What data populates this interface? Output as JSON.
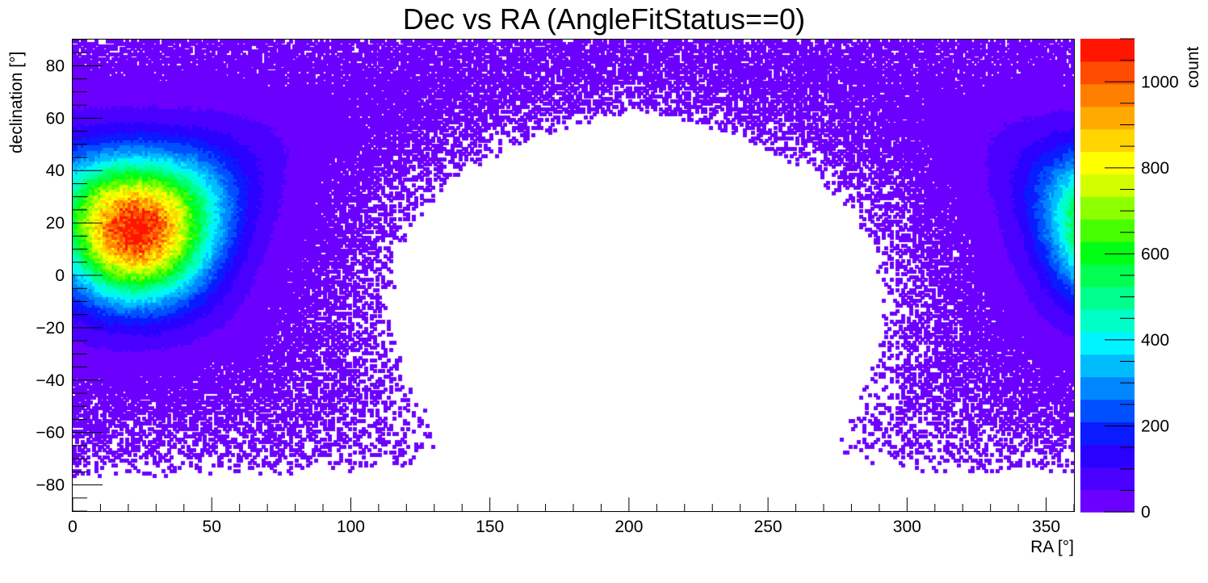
{
  "chart_data": {
    "type": "heatmap",
    "title": "Dec vs RA (AngleFitStatus==0)",
    "xlabel": "RA [°]",
    "ylabel": "declination [°]",
    "zlabel": "count",
    "xlim": [
      0,
      360
    ],
    "ylim": [
      -90,
      90
    ],
    "zlim": [
      0,
      1100
    ],
    "x_ticks": [
      "0",
      "50",
      "100",
      "150",
      "200",
      "250",
      "300",
      "350"
    ],
    "y_ticks": [
      "−80",
      "−60",
      "−40",
      "−20",
      "0",
      "20",
      "40",
      "60",
      "80"
    ],
    "z_ticks": [
      "0",
      "200",
      "400",
      "600",
      "800",
      "1000"
    ],
    "bins": {
      "nx": 360,
      "ny": 180
    },
    "grid": false,
    "hotspot": {
      "ra": 23,
      "dec": 18,
      "peak_count": 1090
    },
    "palette": [
      "#6c00ff",
      "#4a00ff",
      "#2a00ff",
      "#0a1cff",
      "#0050ff",
      "#0086ff",
      "#00bcff",
      "#00f4ff",
      "#00ffc8",
      "#00ff8c",
      "#00ff50",
      "#00ff14",
      "#46ff00",
      "#8cff00",
      "#d2ff00",
      "#ffff00",
      "#ffd400",
      "#ffaa00",
      "#ff7f00",
      "#ff4c00",
      "#ff1500"
    ]
  }
}
